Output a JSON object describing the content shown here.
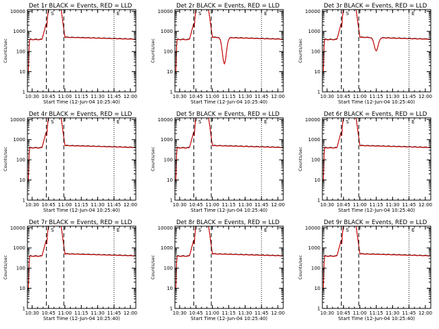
{
  "figure": {
    "legend_text": "BLACK = Events, RED = LLD",
    "ylabel": "Counts/sec",
    "xlabel": "Start Time (12-Jun-04 10:25:40)",
    "colors": {
      "events": "#000000",
      "lld": "#e00000",
      "axes": "#000000",
      "background": "#ffffff"
    }
  },
  "chart_data": [
    {
      "type": "line",
      "title": "Det 1r BLACK = Events, RED = LLD",
      "xlabel": "Start Time (12-Jun-04 10:25:40)",
      "ylabel": "Counts/sec",
      "yscale": "log",
      "ylim": [
        1,
        12000
      ],
      "xlim": [
        "10:25:40",
        "12:05:00"
      ],
      "x_ticks": [
        "10:30",
        "10:45",
        "11:00",
        "11:15",
        "11:30",
        "11:45",
        "12:00"
      ],
      "y_ticks": [
        "1",
        "10",
        "100",
        "1000",
        "10000"
      ],
      "markers": [
        "S",
        "E"
      ],
      "flare_peak_y": 20000,
      "dip": null,
      "vlines": [
        {
          "x": "10:43",
          "style": "dashed"
        },
        {
          "x": "10:59",
          "style": "dashed"
        },
        {
          "x": "11:45",
          "style": "dotted"
        }
      ]
    },
    {
      "type": "line",
      "title": "Det 2r BLACK = Events, RED = LLD",
      "xlabel": "Start Time (12-Jun-04 10:25:40)",
      "ylabel": "Counts/sec",
      "yscale": "log",
      "ylim": [
        1,
        12000
      ],
      "xlim": [
        "10:25:40",
        "12:05:00"
      ],
      "x_ticks": [
        "10:30",
        "10:45",
        "11:00",
        "11:15",
        "11:30",
        "11:45",
        "12:00"
      ],
      "y_ticks": [
        "1",
        "10",
        "100",
        "1000",
        "10000"
      ],
      "markers": [
        "S",
        "E"
      ],
      "flare_peak_y": 20000,
      "dip": {
        "x": "11:11",
        "y": 25
      },
      "vlines": [
        {
          "x": "10:43",
          "style": "dashed"
        },
        {
          "x": "10:59",
          "style": "dashed"
        },
        {
          "x": "11:45",
          "style": "dotted"
        }
      ]
    },
    {
      "type": "line",
      "title": "Det 3r BLACK = Events, RED = LLD",
      "xlabel": "Start Time (12-Jun-04 10:25:40)",
      "ylabel": "Counts/sec",
      "yscale": "log",
      "ylim": [
        1,
        12000
      ],
      "xlim": [
        "10:25:40",
        "12:05:00"
      ],
      "x_ticks": [
        "10:30",
        "10:45",
        "11:00",
        "11:15",
        "11:30",
        "11:45",
        "12:00"
      ],
      "y_ticks": [
        "1",
        "10",
        "100",
        "1000",
        "10000"
      ],
      "markers": [
        "S",
        "E"
      ],
      "flare_peak_y": 20000,
      "dip": {
        "x": "11:15",
        "y": 110
      },
      "vlines": [
        {
          "x": "10:43",
          "style": "dashed"
        },
        {
          "x": "10:59",
          "style": "dashed"
        },
        {
          "x": "11:45",
          "style": "dotted"
        }
      ]
    },
    {
      "type": "line",
      "title": "Det 4r BLACK = Events, RED = LLD",
      "xlabel": "Start Time (12-Jun-04 10:25:40)",
      "ylabel": "Counts/sec",
      "yscale": "log",
      "ylim": [
        1,
        12000
      ],
      "xlim": [
        "10:25:40",
        "12:05:00"
      ],
      "x_ticks": [
        "10:30",
        "10:45",
        "11:00",
        "11:15",
        "11:30",
        "11:45",
        "12:00"
      ],
      "y_ticks": [
        "1",
        "10",
        "100",
        "1000",
        "10000"
      ],
      "markers": [
        "S",
        "E"
      ],
      "flare_peak_y": 20000,
      "dip": null,
      "vlines": [
        {
          "x": "10:43",
          "style": "dashed"
        },
        {
          "x": "10:59",
          "style": "dashed"
        },
        {
          "x": "11:45",
          "style": "dotted"
        }
      ]
    },
    {
      "type": "line",
      "title": "Det 5r BLACK = Events, RED = LLD",
      "xlabel": "Start Time (12-Jun-04 10:25:40)",
      "ylabel": "Counts/sec",
      "yscale": "log",
      "ylim": [
        1,
        12000
      ],
      "xlim": [
        "10:25:40",
        "12:05:00"
      ],
      "x_ticks": [
        "10:30",
        "10:45",
        "11:00",
        "11:15",
        "11:30",
        "11:45",
        "12:00"
      ],
      "y_ticks": [
        "1",
        "10",
        "100",
        "1000",
        "10000"
      ],
      "markers": [
        "S",
        "E"
      ],
      "flare_peak_y": 20000,
      "dip": null,
      "vlines": [
        {
          "x": "10:43",
          "style": "dashed"
        },
        {
          "x": "10:59",
          "style": "dashed"
        },
        {
          "x": "11:45",
          "style": "dotted"
        }
      ]
    },
    {
      "type": "line",
      "title": "Det 6r BLACK = Events, RED = LLD",
      "xlabel": "Start Time (12-Jun-04 10:25:40)",
      "ylabel": "Counts/sec",
      "yscale": "log",
      "ylim": [
        1,
        12000
      ],
      "xlim": [
        "10:25:40",
        "12:05:00"
      ],
      "x_ticks": [
        "10:30",
        "10:45",
        "11:00",
        "11:15",
        "11:30",
        "11:45",
        "12:00"
      ],
      "y_ticks": [
        "1",
        "10",
        "100",
        "1000",
        "10000"
      ],
      "markers": [
        "S",
        "E"
      ],
      "flare_peak_y": 20000,
      "dip": null,
      "vlines": [
        {
          "x": "10:43",
          "style": "dashed"
        },
        {
          "x": "10:59",
          "style": "dashed"
        },
        {
          "x": "11:45",
          "style": "dotted"
        }
      ]
    },
    {
      "type": "line",
      "title": "Det 7r BLACK = Events, RED = LLD",
      "xlabel": "Start Time (12-Jun-04 10:25:40)",
      "ylabel": "Counts/sec",
      "yscale": "log",
      "ylim": [
        1,
        12000
      ],
      "xlim": [
        "10:25:40",
        "12:05:00"
      ],
      "x_ticks": [
        "10:30",
        "10:45",
        "11:00",
        "11:15",
        "11:30",
        "11:45",
        "12:00"
      ],
      "y_ticks": [
        "1",
        "10",
        "100",
        "1000",
        "10000"
      ],
      "markers": [
        "S",
        "E"
      ],
      "flare_peak_y": 20000,
      "dip": null,
      "vlines": [
        {
          "x": "10:43",
          "style": "dashed"
        },
        {
          "x": "10:59",
          "style": "dashed"
        },
        {
          "x": "11:45",
          "style": "dotted"
        }
      ]
    },
    {
      "type": "line",
      "title": "Det 8r BLACK = Events, RED = LLD",
      "xlabel": "Start Time (12-Jun-04 10:25:40)",
      "ylabel": "Counts/sec",
      "yscale": "log",
      "ylim": [
        1,
        12000
      ],
      "xlim": [
        "10:25:40",
        "12:05:00"
      ],
      "x_ticks": [
        "10:30",
        "10:45",
        "11:00",
        "11:15",
        "11:30",
        "11:45",
        "12:00"
      ],
      "y_ticks": [
        "1",
        "10",
        "100",
        "1000",
        "10000"
      ],
      "markers": [
        "S",
        "E"
      ],
      "flare_peak_y": 20000,
      "dip": null,
      "vlines": [
        {
          "x": "10:43",
          "style": "dashed"
        },
        {
          "x": "10:59",
          "style": "dashed"
        },
        {
          "x": "11:45",
          "style": "dotted"
        }
      ]
    },
    {
      "type": "line",
      "title": "Det 9r BLACK = Events, RED = LLD",
      "xlabel": "Start Time (12-Jun-04 10:25:40)",
      "ylabel": "Counts/sec",
      "yscale": "log",
      "ylim": [
        1,
        12000
      ],
      "xlim": [
        "10:25:40",
        "12:05:00"
      ],
      "x_ticks": [
        "10:30",
        "10:45",
        "11:00",
        "11:15",
        "11:30",
        "11:45",
        "12:00"
      ],
      "y_ticks": [
        "1",
        "10",
        "100",
        "1000",
        "10000"
      ],
      "markers": [
        "S",
        "E"
      ],
      "flare_peak_y": 20000,
      "dip": null,
      "vlines": [
        {
          "x": "10:43",
          "style": "dashed"
        },
        {
          "x": "10:59",
          "style": "dashed"
        },
        {
          "x": "11:45",
          "style": "dotted"
        }
      ]
    }
  ]
}
